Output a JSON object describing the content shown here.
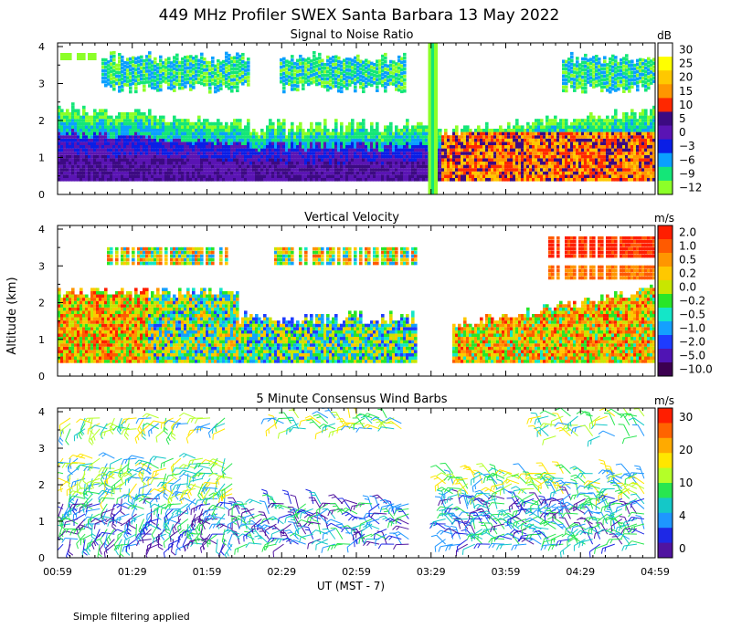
{
  "title": "449 MHz Profiler SWEX Santa Barbara 13 May 2022",
  "footnote": "Simple filtering applied",
  "x_axis": {
    "label": "UT  (MST - 7)",
    "ticks": [
      "00:59",
      "01:29",
      "01:59",
      "02:29",
      "02:59",
      "03:29",
      "03:59",
      "04:29",
      "04:59"
    ]
  },
  "y_axis_label": "Altitude (km)",
  "chart_data": [
    {
      "type": "heatmap",
      "title": "Signal to Noise Ratio",
      "ylim": [
        0,
        4
      ],
      "yticks": [
        "0",
        "1",
        "2",
        "3",
        "4"
      ],
      "colorbar": {
        "unit": "dB",
        "labels": [
          "30",
          "25",
          "20",
          "15",
          "10",
          "5",
          "0",
          "−3",
          "−6",
          "−9",
          "−12"
        ],
        "colors": [
          "#ffffff",
          "#ffff00",
          "#ffc800",
          "#ff9600",
          "#ff2800",
          "#3c0a82",
          "#5a14b4",
          "#0a1ee6",
          "#0aa0ff",
          "#14e678",
          "#8cff28"
        ]
      }
    },
    {
      "type": "heatmap",
      "title": "Vertical Velocity",
      "ylim": [
        0,
        4
      ],
      "yticks": [
        "0",
        "1",
        "2",
        "3",
        "4"
      ],
      "colorbar": {
        "unit": "m/s",
        "labels": [
          "2.0",
          "1.0",
          "0.5",
          "0.2",
          "0.0",
          "−0.2",
          "−0.5",
          "−1.0",
          "−2.0",
          "−5.0",
          "−10.0"
        ],
        "colors": [
          "#ff1e00",
          "#ff5a00",
          "#ff9600",
          "#ffc800",
          "#c8e600",
          "#28e628",
          "#14e6c8",
          "#14a0ff",
          "#1e3cff",
          "#5014b4",
          "#3c0050"
        ]
      }
    },
    {
      "type": "scatter",
      "title": "5 Minute Consensus Wind Barbs",
      "ylim": [
        0,
        4
      ],
      "yticks": [
        "0",
        "1",
        "2",
        "3",
        "4"
      ],
      "colorbar": {
        "unit": "m/s",
        "labels": [
          "30",
          "20",
          "10",
          "4",
          "0"
        ],
        "colors": [
          "#ff1e00",
          "#ff6400",
          "#ffaa00",
          "#ffe600",
          "#b4ff28",
          "#28e650",
          "#14c8c8",
          "#1e96ff",
          "#1e28e6",
          "#5014a0"
        ]
      }
    }
  ]
}
